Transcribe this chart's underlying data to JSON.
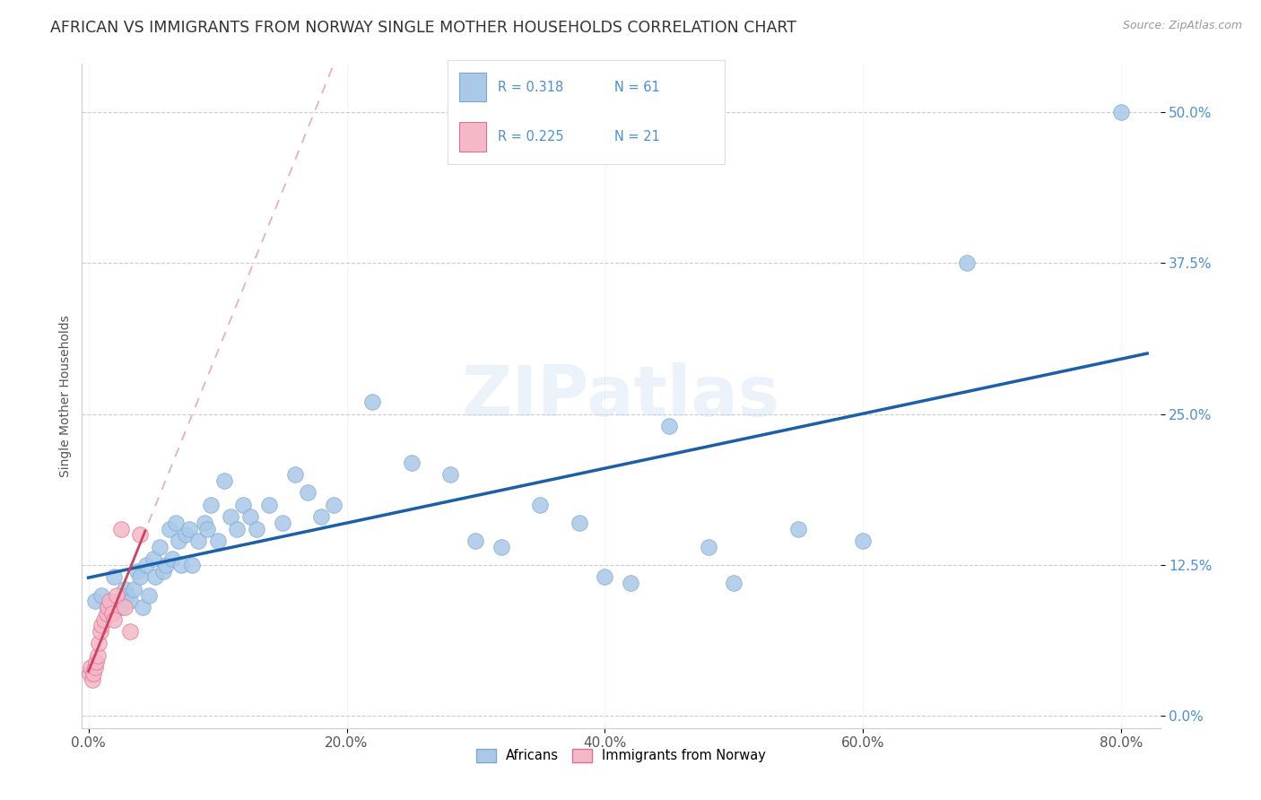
{
  "title": "AFRICAN VS IMMIGRANTS FROM NORWAY SINGLE MOTHER HOUSEHOLDS CORRELATION CHART",
  "source": "Source: ZipAtlas.com",
  "xlim": [
    -0.005,
    0.83
  ],
  "ylim": [
    -0.01,
    0.54
  ],
  "xtick_vals": [
    0.0,
    0.2,
    0.4,
    0.6,
    0.8
  ],
  "ytick_vals": [
    0.0,
    0.125,
    0.25,
    0.375,
    0.5
  ],
  "xlabel_ticks": [
    "0.0%",
    "20.0%",
    "40.0%",
    "60.0%",
    "80.0%"
  ],
  "ylabel_ticks": [
    "0.0%",
    "12.5%",
    "25.0%",
    "37.5%",
    "50.0%"
  ],
  "africans_x": [
    0.005,
    0.01,
    0.015,
    0.02,
    0.022,
    0.025,
    0.028,
    0.03,
    0.032,
    0.035,
    0.038,
    0.04,
    0.042,
    0.045,
    0.047,
    0.05,
    0.052,
    0.055,
    0.058,
    0.06,
    0.063,
    0.065,
    0.068,
    0.07,
    0.072,
    0.075,
    0.078,
    0.08,
    0.085,
    0.09,
    0.092,
    0.095,
    0.1,
    0.105,
    0.11,
    0.115,
    0.12,
    0.125,
    0.13,
    0.14,
    0.15,
    0.16,
    0.17,
    0.18,
    0.19,
    0.22,
    0.25,
    0.28,
    0.3,
    0.32,
    0.35,
    0.38,
    0.4,
    0.42,
    0.45,
    0.48,
    0.5,
    0.55,
    0.6,
    0.68,
    0.8
  ],
  "africans_y": [
    0.095,
    0.1,
    0.09,
    0.115,
    0.095,
    0.09,
    0.105,
    0.1,
    0.095,
    0.105,
    0.12,
    0.115,
    0.09,
    0.125,
    0.1,
    0.13,
    0.115,
    0.14,
    0.12,
    0.125,
    0.155,
    0.13,
    0.16,
    0.145,
    0.125,
    0.15,
    0.155,
    0.125,
    0.145,
    0.16,
    0.155,
    0.175,
    0.145,
    0.195,
    0.165,
    0.155,
    0.175,
    0.165,
    0.155,
    0.175,
    0.16,
    0.2,
    0.185,
    0.165,
    0.175,
    0.26,
    0.21,
    0.2,
    0.145,
    0.14,
    0.175,
    0.16,
    0.115,
    0.11,
    0.24,
    0.14,
    0.11,
    0.155,
    0.145,
    0.375,
    0.5
  ],
  "norway_x": [
    0.001,
    0.002,
    0.003,
    0.004,
    0.005,
    0.006,
    0.007,
    0.008,
    0.009,
    0.01,
    0.012,
    0.014,
    0.015,
    0.016,
    0.018,
    0.02,
    0.022,
    0.025,
    0.028,
    0.032,
    0.04
  ],
  "norway_y": [
    0.035,
    0.04,
    0.03,
    0.035,
    0.04,
    0.045,
    0.05,
    0.06,
    0.07,
    0.075,
    0.08,
    0.085,
    0.09,
    0.095,
    0.085,
    0.08,
    0.1,
    0.155,
    0.09,
    0.07,
    0.15
  ],
  "african_color": "#aac8e8",
  "african_edge": "#7aaad0",
  "norway_color": "#f4b8c8",
  "norway_edge": "#e07090",
  "blue_line_color": "#1a5fa8",
  "pink_line_color": "#d04060",
  "dashed_line_color": "#e8b0b8",
  "watermark": "ZIPatlas",
  "R_african": "0.318",
  "N_african": "61",
  "R_norway": "0.225",
  "N_norway": "21",
  "legend_label_african": "Africans",
  "legend_label_norway": "Immigrants from Norway",
  "ylabel": "Single Mother Households",
  "marker_size": 160,
  "title_fontsize": 12.5,
  "axis_label_fontsize": 10,
  "tick_label_color_y": "#4a90d9",
  "tick_label_color_x": "#555555",
  "tick_label_fontsize": 11
}
